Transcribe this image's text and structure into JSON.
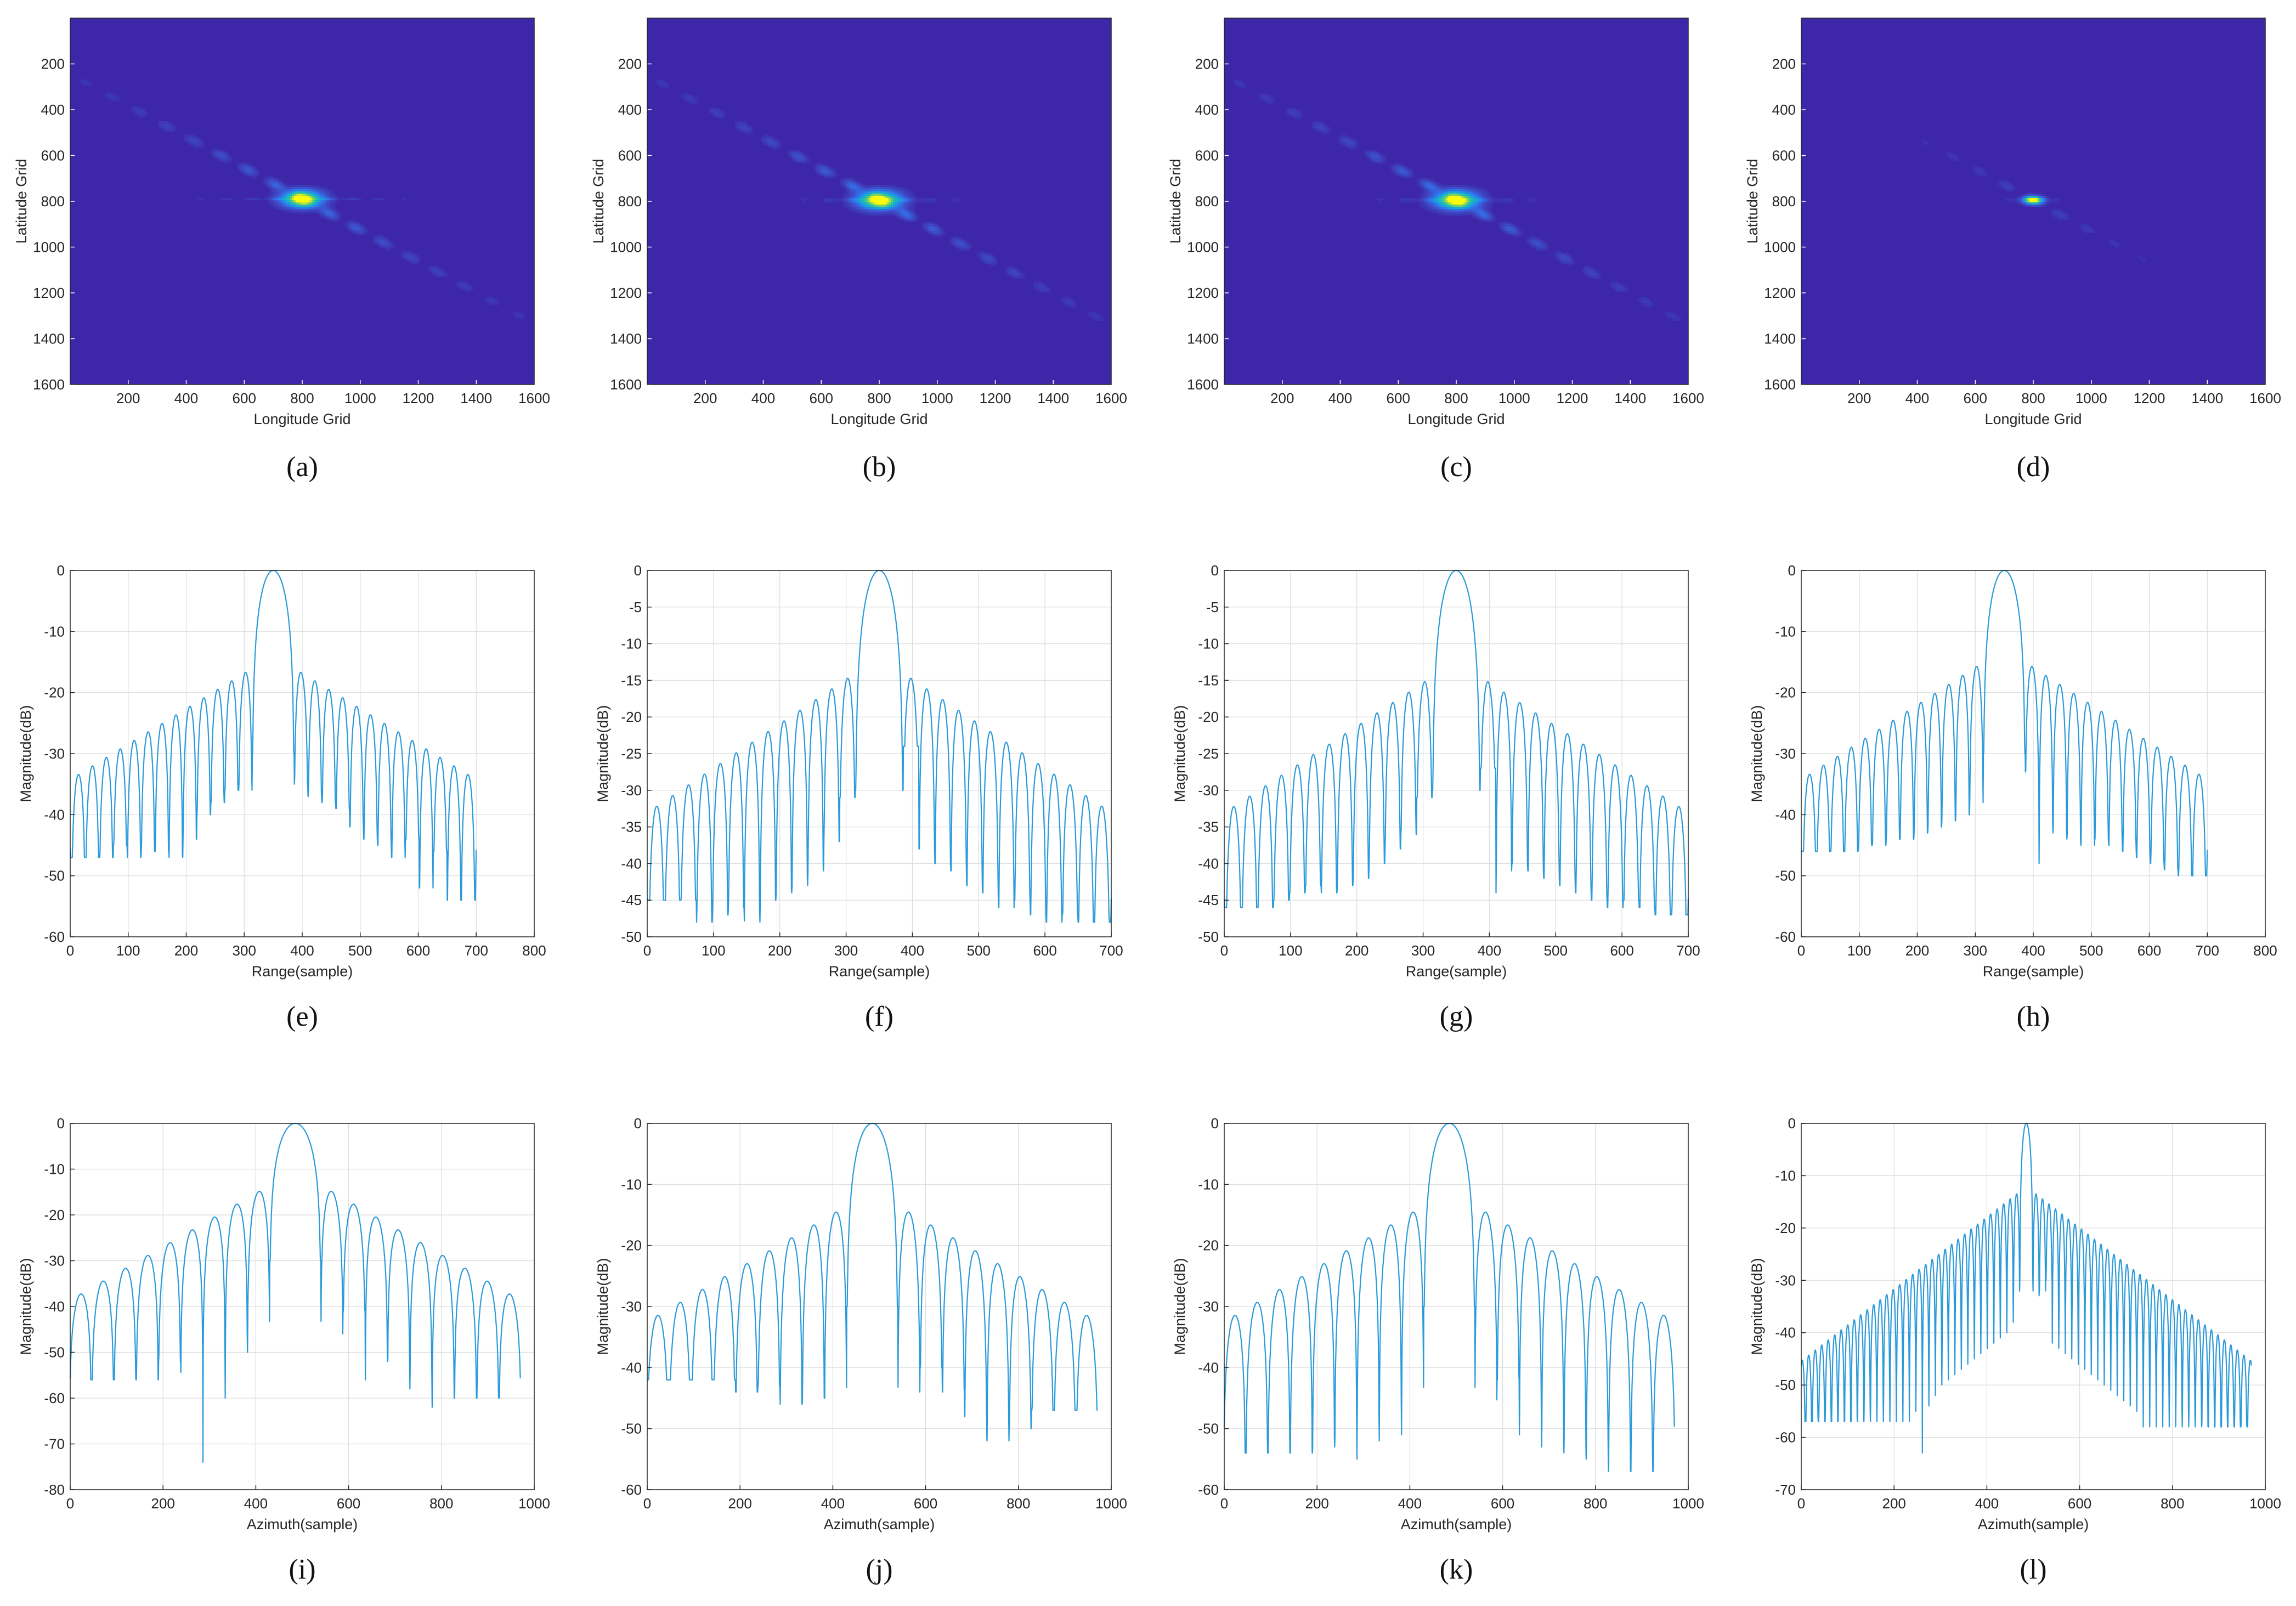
{
  "colors": {
    "heatmap_background": "#3d26a8",
    "heatmap_ramp": [
      "#3d26a8",
      "#3e4cc7",
      "#2f77f0",
      "#17a8d6",
      "#27c4a2",
      "#8dd15d",
      "#f9fb0e"
    ],
    "line": "#2b9ad9",
    "grid": "#dcdcdc",
    "axis": "#262626"
  },
  "chart_data": [
    {
      "panel": "(a)",
      "type": "heatmap",
      "xlabel": "Longitude Grid",
      "ylabel": "Latitude Grid",
      "xlim": [
        0,
        1600
      ],
      "ylim": [
        0,
        1600
      ],
      "y_reversed": true,
      "xticks": [
        200,
        400,
        600,
        800,
        1000,
        1200,
        1400,
        1600
      ],
      "yticks": [
        200,
        400,
        600,
        800,
        1000,
        1200,
        1400,
        1600
      ],
      "peak": [
        800,
        790
      ],
      "peak_width": [
        48,
        26
      ],
      "streak_slope": 0.68,
      "streak_extent": 560,
      "streak_strength": 0.32,
      "horizontal_strength": 0.22
    },
    {
      "panel": "(b)",
      "type": "heatmap",
      "xlabel": "Longitude Grid",
      "ylabel": "Latitude Grid",
      "xlim": [
        0,
        1600
      ],
      "ylim": [
        0,
        1600
      ],
      "y_reversed": true,
      "xticks": [
        200,
        400,
        600,
        800,
        1000,
        1200,
        1400,
        1600
      ],
      "yticks": [
        200,
        400,
        600,
        800,
        1000,
        1200,
        1400,
        1600
      ],
      "peak": [
        800,
        795
      ],
      "peak_width": [
        52,
        28
      ],
      "streak_slope": 0.68,
      "streak_extent": 580,
      "streak_strength": 0.34,
      "horizontal_strength": 0.24
    },
    {
      "panel": "(c)",
      "type": "heatmap",
      "xlabel": "Longitude Grid",
      "ylabel": "Latitude Grid",
      "xlim": [
        0,
        1600
      ],
      "ylim": [
        0,
        1600
      ],
      "y_reversed": true,
      "xticks": [
        200,
        400,
        600,
        800,
        1000,
        1200,
        1400,
        1600
      ],
      "yticks": [
        200,
        400,
        600,
        800,
        1000,
        1200,
        1400,
        1600
      ],
      "peak": [
        800,
        795
      ],
      "peak_width": [
        52,
        28
      ],
      "streak_slope": 0.68,
      "streak_extent": 580,
      "streak_strength": 0.34,
      "horizontal_strength": 0.24
    },
    {
      "panel": "(d)",
      "type": "heatmap",
      "xlabel": "Longitude Grid",
      "ylabel": "Latitude Grid",
      "xlim": [
        0,
        1600
      ],
      "ylim": [
        0,
        1600
      ],
      "y_reversed": true,
      "xticks": [
        200,
        400,
        600,
        800,
        1000,
        1200,
        1400,
        1600
      ],
      "yticks": [
        200,
        400,
        600,
        800,
        1000,
        1200,
        1400,
        1600
      ],
      "peak": [
        800,
        795
      ],
      "peak_width": [
        24,
        12
      ],
      "streak_slope": 0.68,
      "streak_extent": 420,
      "streak_strength": 0.14,
      "horizontal_strength": 0.1
    },
    {
      "panel": "(e)",
      "type": "line",
      "xlabel": "Range(sample)",
      "ylabel": "Magnitude(dB)",
      "xlim": [
        0,
        800
      ],
      "ylim": [
        -60,
        0
      ],
      "xticks": [
        0,
        100,
        200,
        300,
        400,
        500,
        600,
        700,
        800
      ],
      "yticks": [
        0,
        -10,
        -20,
        -30,
        -40,
        -50,
        -60
      ],
      "n_samples": 700,
      "peak_x": 350,
      "mainlobe_halfwidth": 36,
      "lobe_spacing": 24,
      "first_sidelobe": -16,
      "envelope_floor": -34,
      "envelope_span": 310,
      "nulls": [
        -47,
        -45,
        -47,
        -46,
        -46,
        -47,
        -44,
        -40,
        -38,
        -36,
        -36,
        -35,
        -37,
        -38,
        -39,
        -42,
        -44,
        -45,
        -47,
        -44,
        -52,
        -46,
        -54
      ]
    },
    {
      "panel": "(f)",
      "type": "line",
      "xlabel": "Range(sample)",
      "ylabel": "Magnitude(dB)",
      "xlim": [
        0,
        700
      ],
      "ylim": [
        -50,
        0
      ],
      "xticks": [
        0,
        100,
        200,
        300,
        400,
        500,
        600,
        700
      ],
      "yticks": [
        0,
        -5,
        -10,
        -15,
        -20,
        -25,
        -30,
        -35,
        -40,
        -45,
        -50
      ],
      "n_samples": 700,
      "peak_x": 350,
      "mainlobe_halfwidth": 36,
      "lobe_spacing": 24,
      "first_sidelobe": -14,
      "envelope_floor": -34,
      "envelope_span": 330,
      "nulls": [
        -45,
        -48,
        -47,
        -46,
        -48,
        -45,
        -44,
        -43,
        -41,
        -37,
        -31,
        -24,
        -38,
        -40,
        -41,
        -43,
        -44,
        -46,
        -45,
        -47,
        -48,
        -47,
        -48
      ]
    },
    {
      "panel": "(g)",
      "type": "line",
      "xlabel": "Range(sample)",
      "ylabel": "Magnitude(dB)",
      "xlim": [
        0,
        700
      ],
      "ylim": [
        -50,
        0
      ],
      "xticks": [
        0,
        100,
        200,
        300,
        400,
        500,
        600,
        700
      ],
      "yticks": [
        0,
        -5,
        -10,
        -15,
        -20,
        -25,
        -30,
        -35,
        -40,
        -45,
        -50
      ],
      "n_samples": 700,
      "peak_x": 350,
      "mainlobe_halfwidth": 36,
      "lobe_spacing": 24,
      "first_sidelobe": -14.5,
      "envelope_floor": -34,
      "envelope_span": 330,
      "nulls": [
        -46,
        -45,
        -44,
        -43,
        -44,
        -43,
        -42,
        -40,
        -38,
        -36,
        -31,
        -27,
        -44,
        -40,
        -41,
        -42,
        -43,
        -44,
        -45,
        -46,
        -45,
        -46,
        -47
      ]
    },
    {
      "panel": "(h)",
      "type": "line",
      "xlabel": "Range(sample)",
      "ylabel": "Magnitude(dB)",
      "xlim": [
        0,
        800
      ],
      "ylim": [
        -60,
        0
      ],
      "xticks": [
        0,
        100,
        200,
        300,
        400,
        500,
        600,
        700,
        800
      ],
      "yticks": [
        0,
        -10,
        -20,
        -30,
        -40,
        -50,
        -60
      ],
      "n_samples": 700,
      "peak_x": 350,
      "mainlobe_halfwidth": 36,
      "lobe_spacing": 24,
      "first_sidelobe": -15,
      "envelope_floor": -34,
      "envelope_span": 310,
      "nulls": [
        -46,
        -46,
        -45,
        -45,
        -44,
        -44,
        -43,
        -42,
        -41,
        -40,
        -38,
        -33,
        -48,
        -43,
        -44,
        -45,
        -44,
        -45,
        -46,
        -47,
        -48,
        -49,
        -50
      ]
    },
    {
      "panel": "(i)",
      "type": "line",
      "xlabel": "Azimuth(sample)",
      "ylabel": "Magnitude(dB)",
      "xlim": [
        0,
        1000
      ],
      "ylim": [
        -80,
        0
      ],
      "xticks": [
        0,
        200,
        400,
        600,
        800,
        1000
      ],
      "yticks": [
        0,
        -10,
        -20,
        -30,
        -40,
        -50,
        -60,
        -70,
        -80
      ],
      "n_samples": 970,
      "peak_x": 485,
      "mainlobe_halfwidth": 55,
      "lobe_spacing": 48,
      "first_sidelobe": -13.5,
      "envelope_floor": -38,
      "envelope_span": 420,
      "nulls": [
        -56,
        -52,
        -74,
        -60,
        -50,
        -52,
        -48,
        -41,
        -56,
        -52,
        -58,
        -62,
        -60
      ]
    },
    {
      "panel": "(j)",
      "type": "line",
      "xlabel": "Azimuth(sample)",
      "ylabel": "Magnitude(dB)",
      "xlim": [
        0,
        1000
      ],
      "ylim": [
        -60,
        0
      ],
      "xticks": [
        0,
        200,
        400,
        600,
        800,
        1000
      ],
      "yticks": [
        0,
        -10,
        -20,
        -30,
        -40,
        -50,
        -60
      ],
      "n_samples": 970,
      "peak_x": 485,
      "mainlobe_halfwidth": 55,
      "lobe_spacing": 48,
      "first_sidelobe": -13.5,
      "envelope_floor": -32,
      "envelope_span": 420,
      "nulls": [
        -42,
        -44,
        -43,
        -46,
        -45,
        -45,
        -44,
        -40,
        -44,
        -48,
        -52,
        -50,
        -47
      ]
    },
    {
      "panel": "(k)",
      "type": "line",
      "xlabel": "Azimuth(sample)",
      "ylabel": "Magnitude(dB)",
      "xlim": [
        0,
        1000
      ],
      "ylim": [
        -60,
        0
      ],
      "xticks": [
        0,
        200,
        400,
        600,
        800,
        1000
      ],
      "yticks": [
        0,
        -10,
        -20,
        -30,
        -40,
        -50,
        -60
      ],
      "n_samples": 970,
      "peak_x": 485,
      "mainlobe_halfwidth": 55,
      "lobe_spacing": 48,
      "first_sidelobe": -13.5,
      "envelope_floor": -32,
      "envelope_span": 420,
      "nulls": [
        -54,
        -53,
        -55,
        -52,
        -51,
        -50,
        -48,
        -42,
        -51,
        -53,
        -54,
        -55,
        -57
      ]
    },
    {
      "panel": "(l)",
      "type": "line",
      "xlabel": "Azimuth(sample)",
      "ylabel": "Magnitude(dB)",
      "xlim": [
        0,
        1000
      ],
      "ylim": [
        -70,
        0
      ],
      "xticks": [
        0,
        200,
        400,
        600,
        800,
        1000
      ],
      "yticks": [
        0,
        -10,
        -20,
        -30,
        -40,
        -50,
        -60,
        -70
      ],
      "n_samples": 970,
      "peak_x": 485,
      "mainlobe_halfwidth": 14,
      "lobe_spacing": 14,
      "first_sidelobe": -13,
      "envelope_floor": -46,
      "envelope_span": 480,
      "nulls": [
        -57,
        -55,
        -63,
        -54,
        -52,
        -50,
        -49,
        -48,
        -47,
        -46,
        -45,
        -44,
        -43,
        -42,
        -41,
        -40,
        -38,
        -36,
        -34,
        -32,
        -30,
        -42,
        -43,
        -44,
        -45,
        -46,
        -47,
        -48,
        -49,
        -50,
        -51,
        -52,
        -53,
        -54,
        -55,
        -58
      ]
    }
  ]
}
